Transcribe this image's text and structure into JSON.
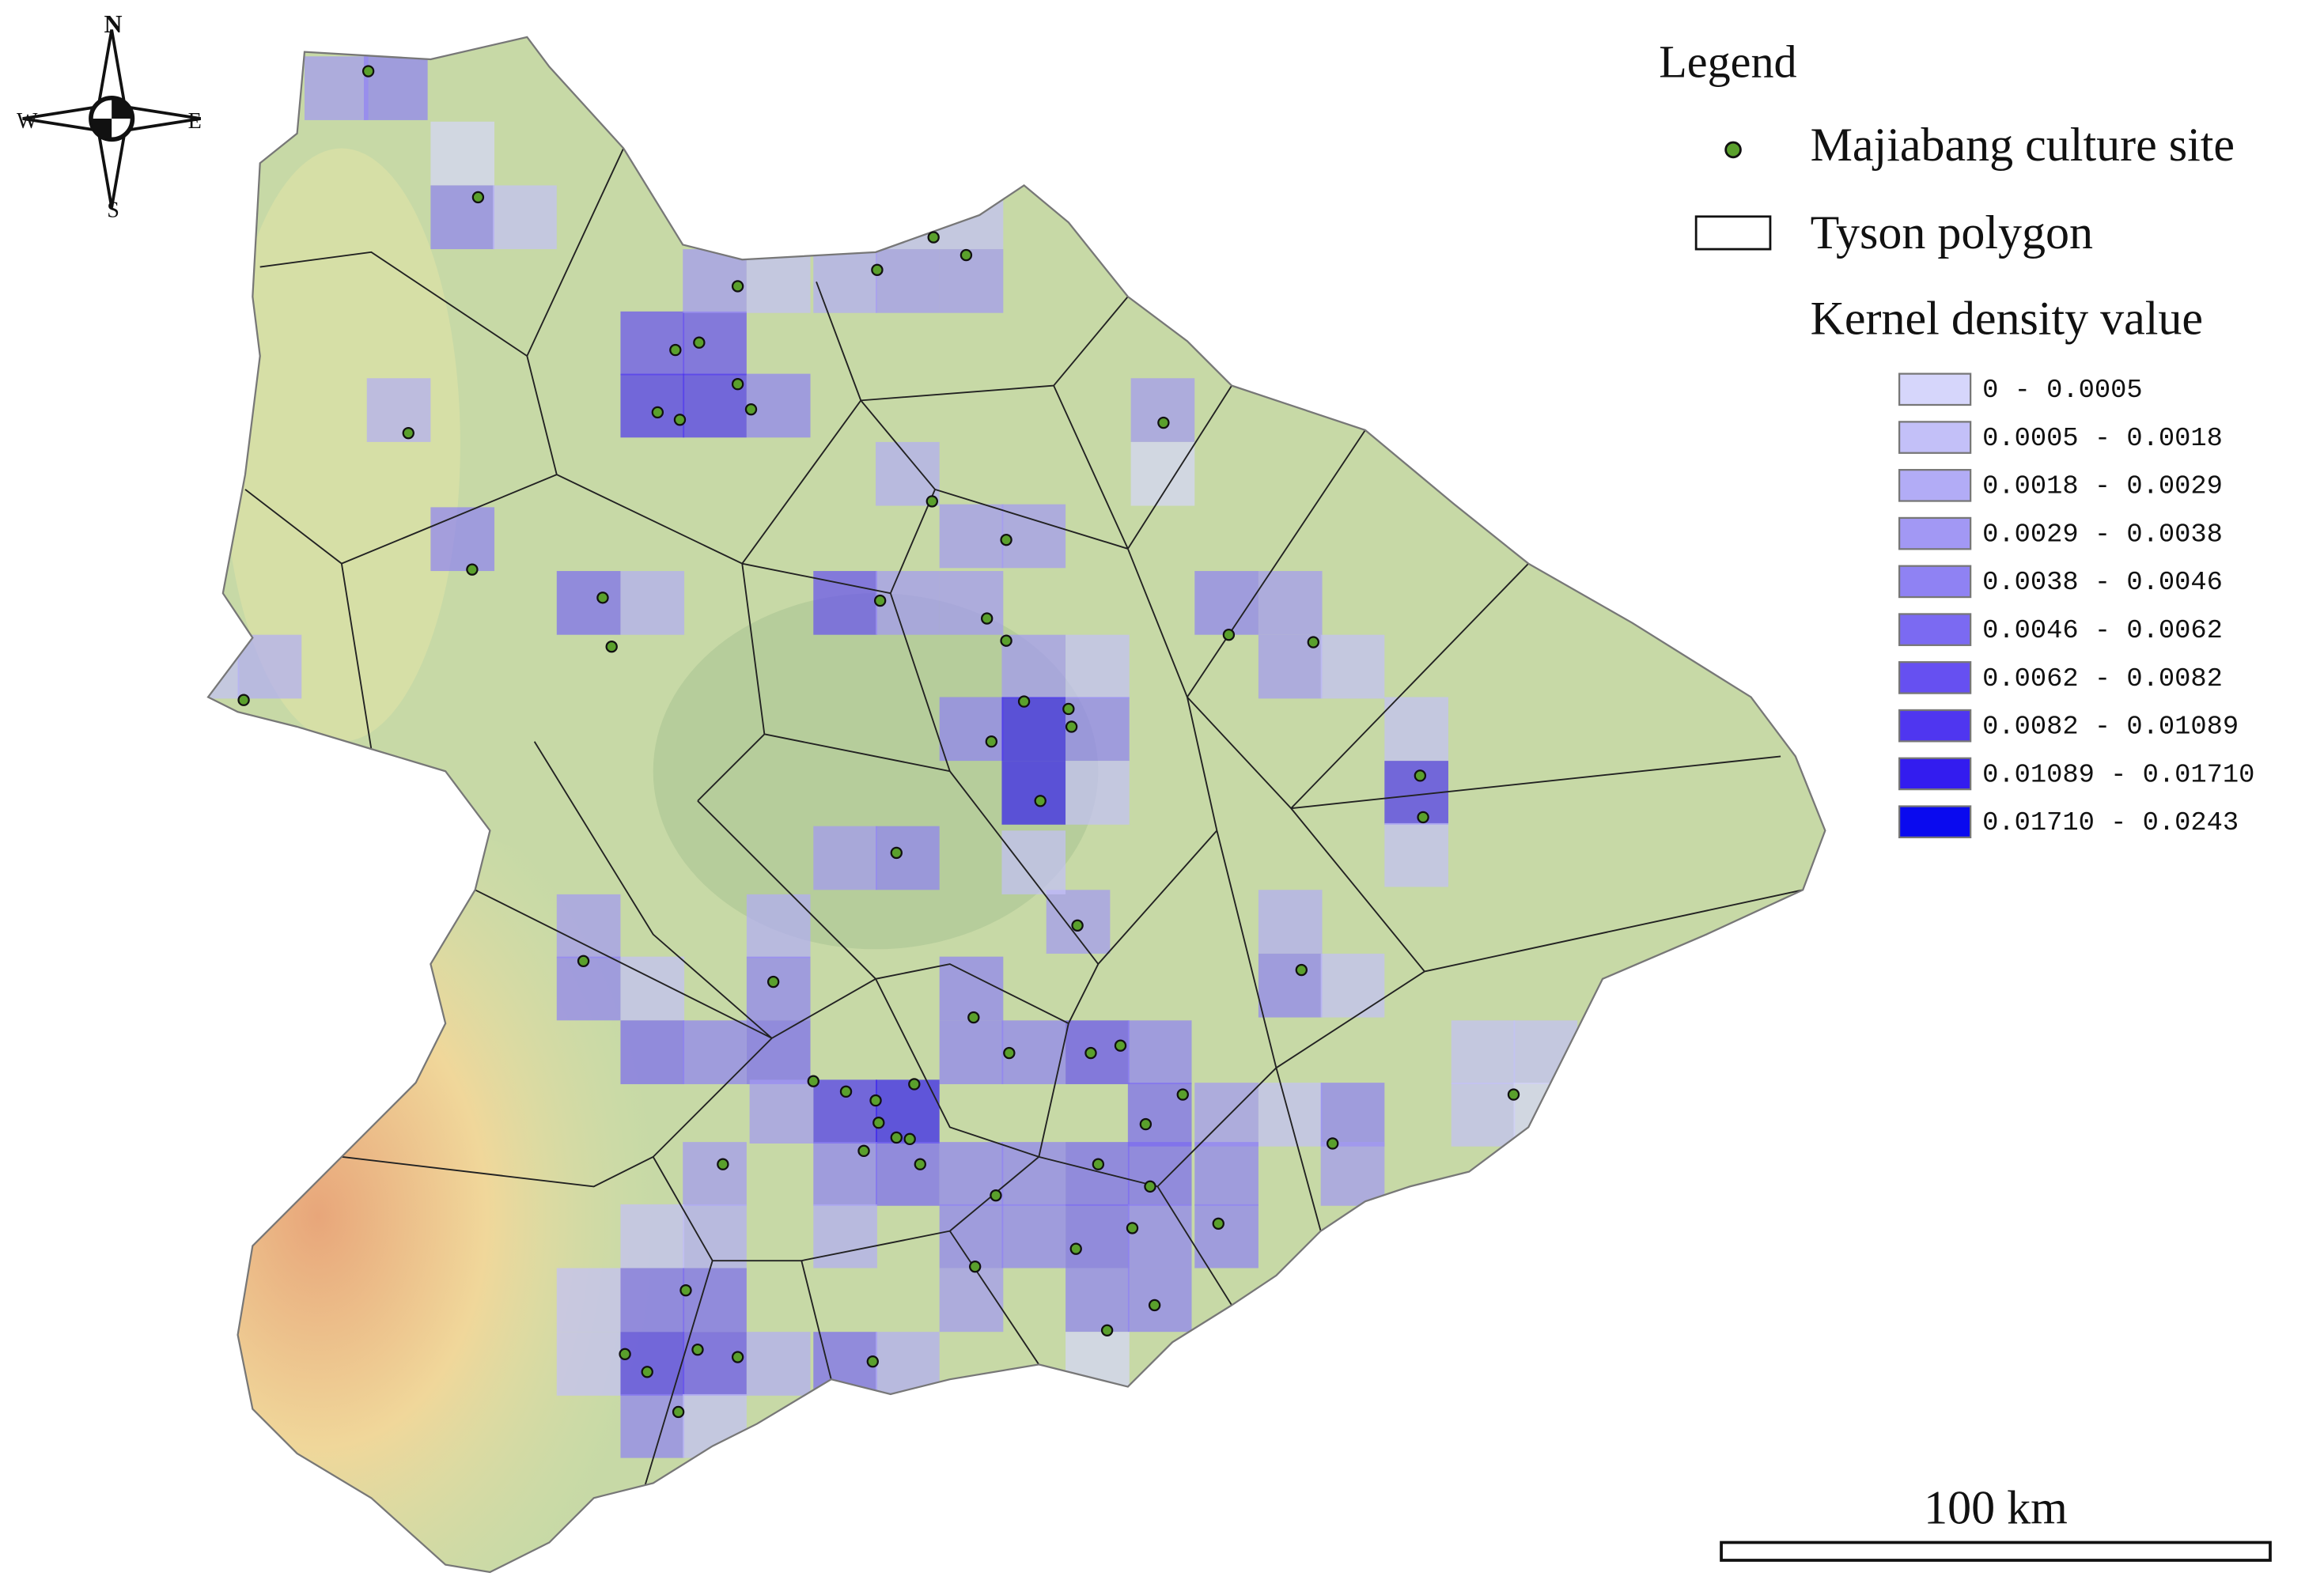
{
  "compass": {
    "north": "N",
    "east": "E",
    "south": "S",
    "west": "W"
  },
  "legend": {
    "title": "Legend",
    "items": [
      {
        "label": "Majiabang culture site",
        "color": "#5aa02c"
      },
      {
        "label": "Tyson polygon"
      }
    ],
    "density_title": "Kernel density value",
    "classes": [
      {
        "label": "0 - 0.0005",
        "color": "#d6d6fb"
      },
      {
        "label": "0.0005 - 0.0018",
        "color": "#c3c0f8"
      },
      {
        "label": "0.0018 - 0.0029",
        "color": "#b2acf6"
      },
      {
        "label": "0.0029 - 0.0038",
        "color": "#a298f4"
      },
      {
        "label": "0.0038 - 0.0046",
        "color": "#8f82f3"
      },
      {
        "label": "0.0046 - 0.0062",
        "color": "#7b6af2"
      },
      {
        "label": "0.0062 - 0.0082",
        "color": "#6650f1"
      },
      {
        "label": "0.0082 - 0.01089",
        "color": "#4f36f0"
      },
      {
        "label": "0.01089 - 0.01710",
        "color": "#331cef"
      },
      {
        "label": "0.01710 - 0.0243",
        "color": "#0a0aef"
      }
    ]
  },
  "scale_bar": {
    "label": "100 km"
  }
}
